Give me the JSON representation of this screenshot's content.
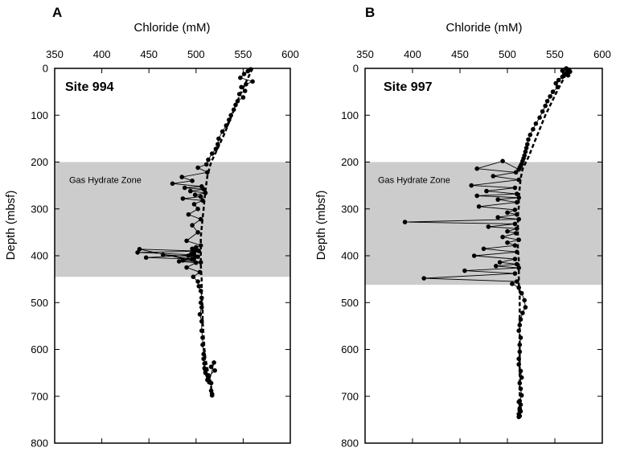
{
  "chart_data": [
    {
      "type": "line",
      "panel_letter": "A",
      "site_label": "Site 994",
      "xlabel": "Chloride (mM)",
      "ylabel": "Depth (mbsf)",
      "xlim": [
        350,
        600
      ],
      "ylim": [
        0,
        800
      ],
      "y_inverted": true,
      "x_ticks": [
        350,
        400,
        450,
        500,
        550,
        600
      ],
      "y_ticks": [
        0,
        100,
        200,
        300,
        400,
        500,
        600,
        700,
        800
      ],
      "zone": {
        "label": "Gas Hydrate Zone",
        "depth_range": [
          200,
          445
        ],
        "color": "#cccccc"
      },
      "series": [
        {
          "style": "measured",
          "x": [
            558,
            555,
            551,
            547,
            560,
            553,
            548,
            552,
            546,
            550,
            544,
            542,
            540,
            537,
            535,
            532,
            528,
            524,
            523,
            521,
            517,
            513,
            511,
            502,
            512,
            485,
            496,
            475,
            506,
            488,
            508,
            494,
            510,
            499,
            505,
            486,
            507,
            498,
            502,
            492,
            505,
            496,
            502,
            490,
            505,
            500,
            496,
            501,
            498,
            495,
            492,
            498,
            486,
            505,
            440,
            503,
            438,
            498,
            447,
            496,
            465,
            502,
            482,
            500,
            490,
            504,
            497,
            502,
            503,
            505,
            506,
            505,
            506,
            504,
            506,
            506,
            507,
            507,
            508,
            508,
            509,
            509,
            510,
            510,
            512,
            513,
            512,
            514,
            519,
            516,
            520,
            513,
            516,
            516,
            517,
            517
          ],
          "y": [
            2,
            6,
            12,
            20,
            28,
            34,
            40,
            48,
            55,
            62,
            70,
            78,
            88,
            100,
            110,
            122,
            135,
            150,
            162,
            172,
            182,
            195,
            205,
            212,
            222,
            232,
            240,
            246,
            252,
            255,
            258,
            262,
            266,
            270,
            274,
            278,
            282,
            290,
            300,
            312,
            322,
            335,
            350,
            368,
            378,
            382,
            385,
            388,
            392,
            396,
            400,
            406,
            410,
            414,
            386,
            390,
            393,
            398,
            404,
            407,
            398,
            402,
            412,
            415,
            425,
            435,
            445,
            455,
            465,
            475,
            490,
            500,
            510,
            525,
            540,
            560,
            575,
            590,
            610,
            620,
            630,
            640,
            645,
            650,
            655,
            660,
            665,
            670,
            628,
            637,
            645,
            658,
            672,
            688,
            695,
            698
          ]
        },
        {
          "style": "baseline",
          "x": [
            560,
            548,
            538,
            530,
            522,
            516,
            514,
            512,
            511,
            510,
            509,
            508,
            507,
            506,
            505,
            505,
            505,
            505,
            506,
            506,
            507,
            507,
            508,
            509,
            510,
            511,
            512,
            513,
            515,
            516,
            516
          ],
          "y": [
            0,
            50,
            100,
            140,
            175,
            200,
            215,
            230,
            245,
            262,
            280,
            300,
            320,
            340,
            360,
            380,
            400,
            420,
            450,
            480,
            510,
            540,
            570,
            600,
            620,
            630,
            640,
            650,
            660,
            680,
            695
          ]
        }
      ]
    },
    {
      "type": "line",
      "panel_letter": "B",
      "site_label": "Site 997",
      "xlabel": "Chloride (mM)",
      "ylabel": "Depth (mbsf)",
      "xlim": [
        350,
        600
      ],
      "ylim": [
        0,
        800
      ],
      "y_inverted": true,
      "x_ticks": [
        350,
        400,
        450,
        500,
        550,
        600
      ],
      "y_ticks": [
        0,
        100,
        200,
        300,
        400,
        500,
        600,
        700,
        800
      ],
      "zone": {
        "label": "Gas Hydrate Zone",
        "depth_range": [
          200,
          462
        ],
        "color": "#cccccc"
      },
      "series": [
        {
          "style": "measured",
          "x": [
            562,
            565,
            558,
            566,
            563,
            560,
            564,
            558,
            554,
            551,
            553,
            548,
            545,
            542,
            540,
            537,
            534,
            530,
            527,
            524,
            522,
            521,
            520,
            519,
            518,
            517,
            516,
            515,
            514,
            513,
            512,
            495,
            468,
            509,
            485,
            512,
            462,
            508,
            478,
            510,
            468,
            512,
            490,
            510,
            470,
            508,
            500,
            510,
            490,
            512,
            392,
            508,
            480,
            510,
            500,
            509,
            495,
            512,
            500,
            508,
            475,
            510,
            465,
            508,
            492,
            510,
            488,
            512,
            455,
            508,
            412,
            510,
            505,
            512,
            515,
            518,
            519,
            516,
            514,
            513,
            512,
            514,
            513,
            513,
            512,
            512,
            514,
            515,
            513,
            514,
            515,
            513,
            514,
            513,
            514,
            512,
            513,
            512,
            513,
            512
          ],
          "y": [
            0,
            3,
            5,
            7,
            9,
            12,
            15,
            18,
            25,
            32,
            40,
            50,
            60,
            70,
            80,
            92,
            105,
            118,
            130,
            142,
            152,
            162,
            170,
            178,
            186,
            192,
            198,
            204,
            208,
            212,
            216,
            198,
            214,
            222,
            230,
            238,
            250,
            255,
            262,
            268,
            272,
            276,
            280,
            286,
            295,
            302,
            308,
            312,
            318,
            322,
            328,
            332,
            338,
            342,
            348,
            352,
            360,
            366,
            372,
            378,
            385,
            392,
            400,
            407,
            414,
            418,
            422,
            426,
            432,
            438,
            448,
            455,
            460,
            468,
            480,
            495,
            510,
            522,
            536,
            548,
            560,
            575,
            590,
            605,
            620,
            632,
            646,
            660,
            672,
            684,
            698,
            710,
            718,
            726,
            732,
            738,
            742,
            744,
            730,
            712
          ]
        },
        {
          "style": "baseline",
          "x": [
            565,
            552,
            540,
            530,
            522,
            516,
            514,
            513,
            512,
            512,
            511,
            511,
            511,
            511,
            512,
            512,
            512,
            513,
            513,
            513,
            513,
            513,
            513,
            513,
            513,
            513,
            513,
            513
          ],
          "y": [
            0,
            50,
            100,
            150,
            190,
            215,
            235,
            255,
            275,
            295,
            315,
            335,
            360,
            385,
            410,
            435,
            460,
            480,
            500,
            530,
            560,
            590,
            620,
            650,
            680,
            710,
            730,
            745
          ]
        }
      ]
    }
  ]
}
